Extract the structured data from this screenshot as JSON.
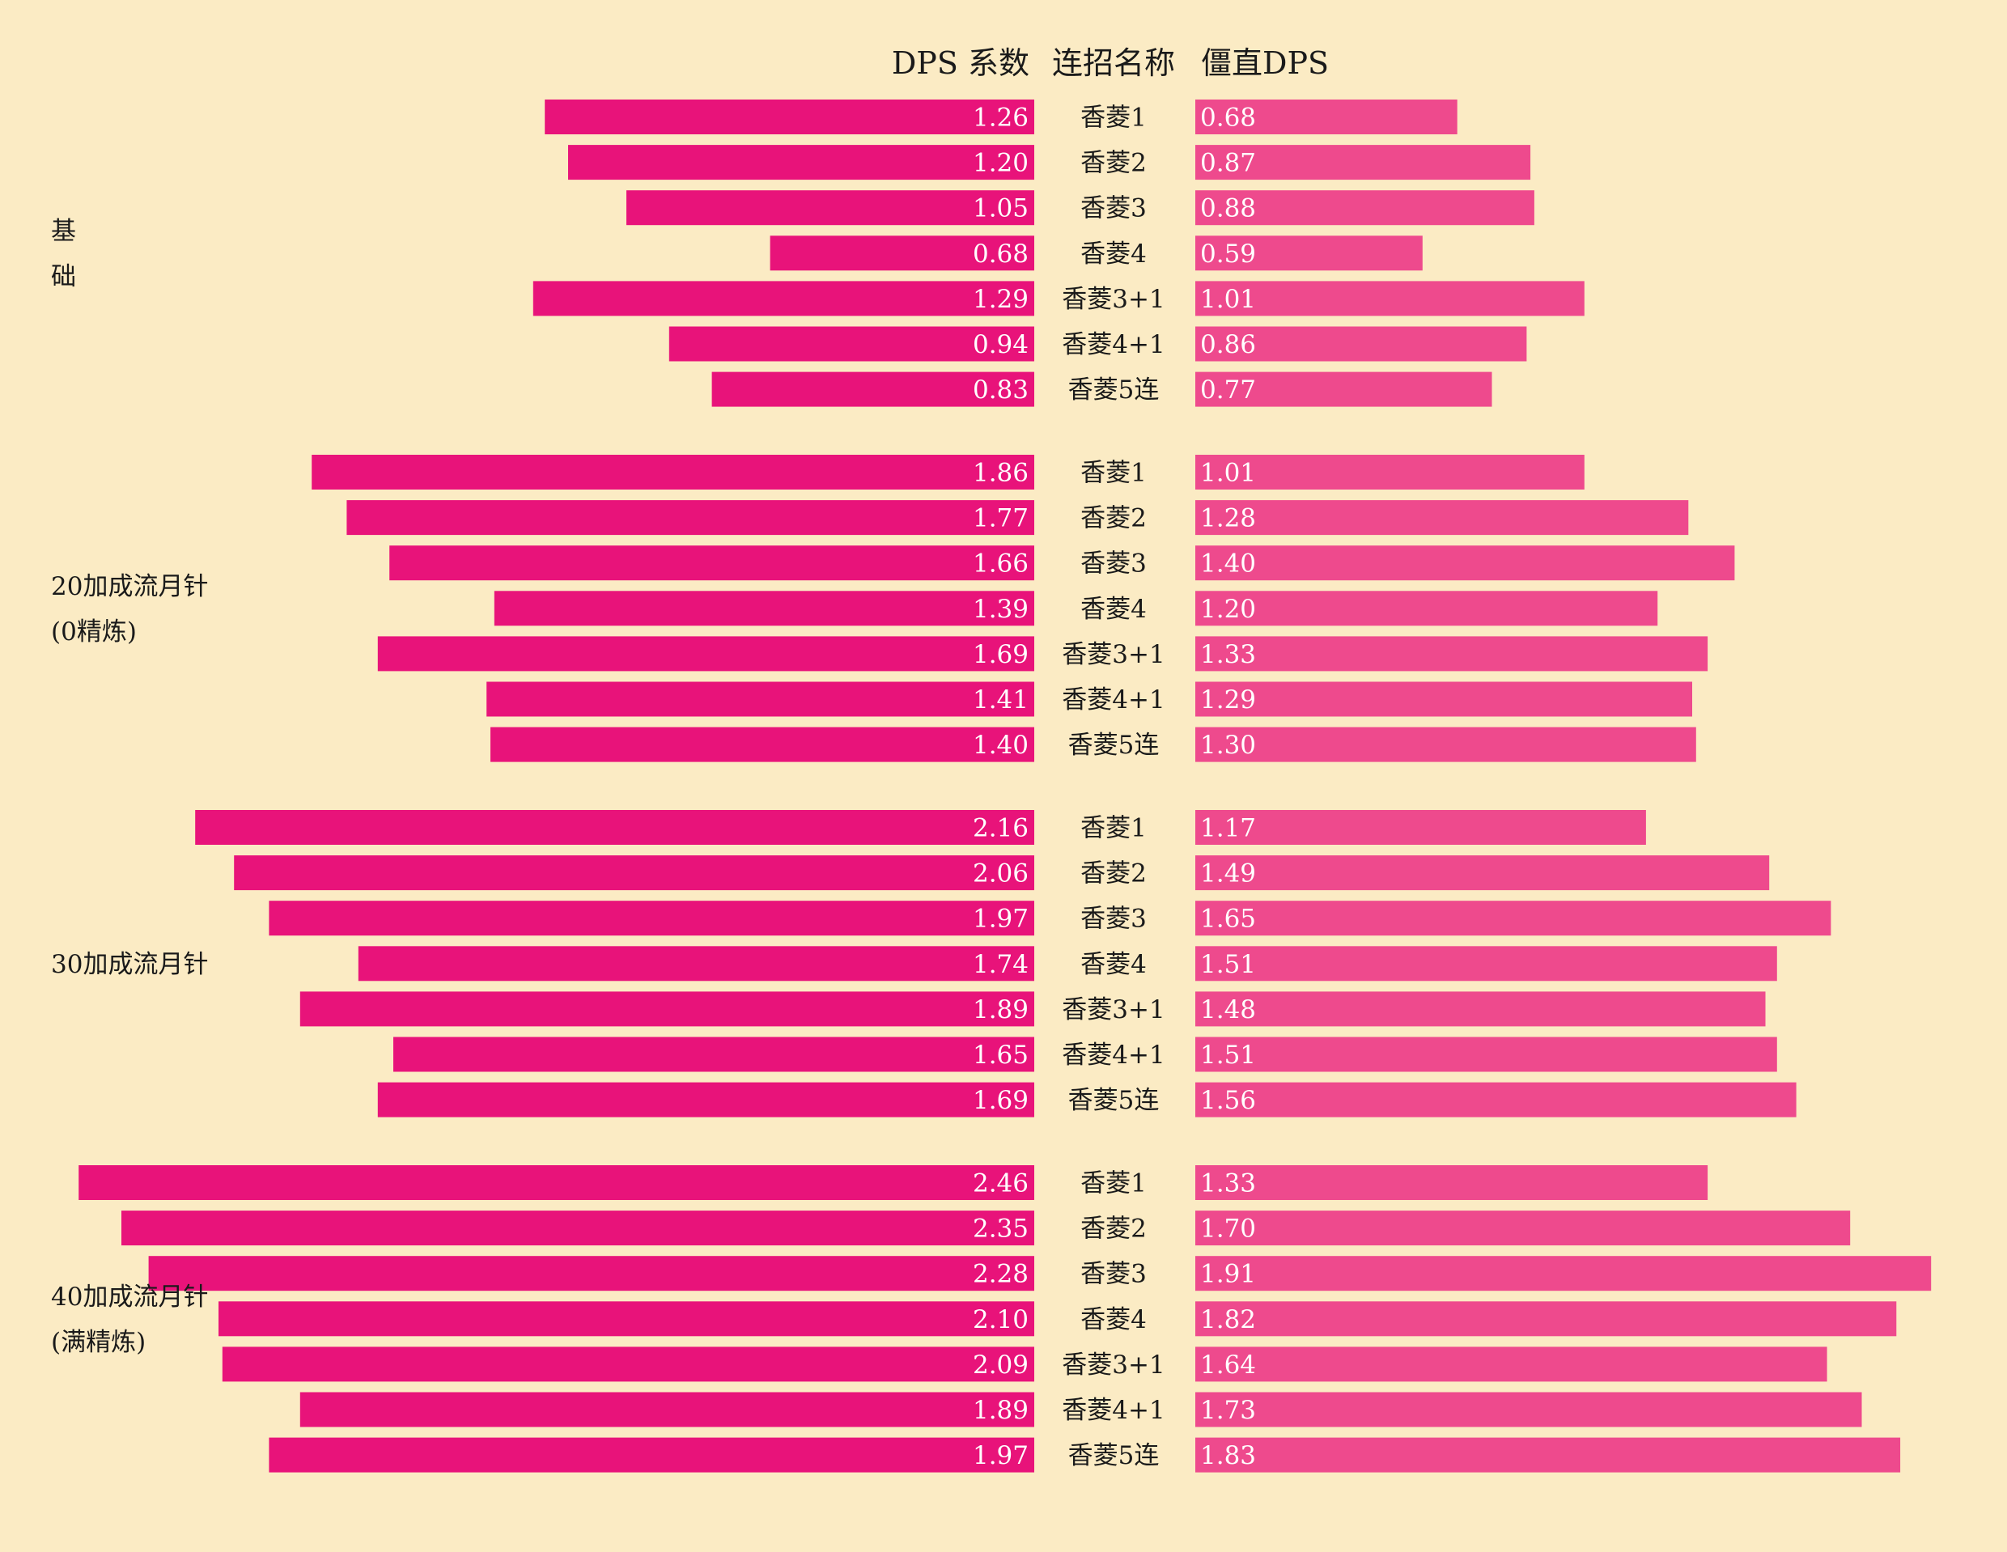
{
  "headers": {
    "left": "DPS 系数",
    "center": "连招名称",
    "right": "僵直DPS"
  },
  "colors": {
    "background": "#FBEBC4",
    "left_bar": "#E8137A",
    "right_bar": "#EE4A8D",
    "text": "#1a1a1a",
    "value_text": "#ffffff"
  },
  "chart_data": {
    "type": "bar",
    "layout": "back-to-back horizontal bars",
    "categories": [
      "香菱1",
      "香菱2",
      "香菱3",
      "香菱4",
      "香菱3+1",
      "香菱4+1",
      "香菱5连"
    ],
    "groups": [
      {
        "label_lines": [
          "基",
          "础"
        ],
        "dps": [
          1.26,
          1.2,
          1.05,
          0.68,
          1.29,
          0.94,
          0.83
        ],
        "stagger_dps": [
          0.68,
          0.87,
          0.88,
          0.59,
          1.01,
          0.86,
          0.77
        ]
      },
      {
        "label_lines": [
          "20加成流月针",
          "(0精炼)"
        ],
        "dps": [
          1.86,
          1.77,
          1.66,
          1.39,
          1.69,
          1.41,
          1.4
        ],
        "stagger_dps": [
          1.01,
          1.28,
          1.4,
          1.2,
          1.33,
          1.29,
          1.3
        ]
      },
      {
        "label_lines": [
          "30加成流月针"
        ],
        "dps": [
          2.16,
          2.06,
          1.97,
          1.74,
          1.89,
          1.65,
          1.69
        ],
        "stagger_dps": [
          1.17,
          1.49,
          1.65,
          1.51,
          1.48,
          1.51,
          1.56
        ]
      },
      {
        "label_lines": [
          "40加成流月针",
          "(满精炼)"
        ],
        "dps": [
          2.46,
          2.35,
          2.28,
          2.1,
          2.09,
          1.89,
          1.97
        ],
        "stagger_dps": [
          1.33,
          1.7,
          1.91,
          1.82,
          1.64,
          1.73,
          1.83
        ]
      }
    ]
  }
}
